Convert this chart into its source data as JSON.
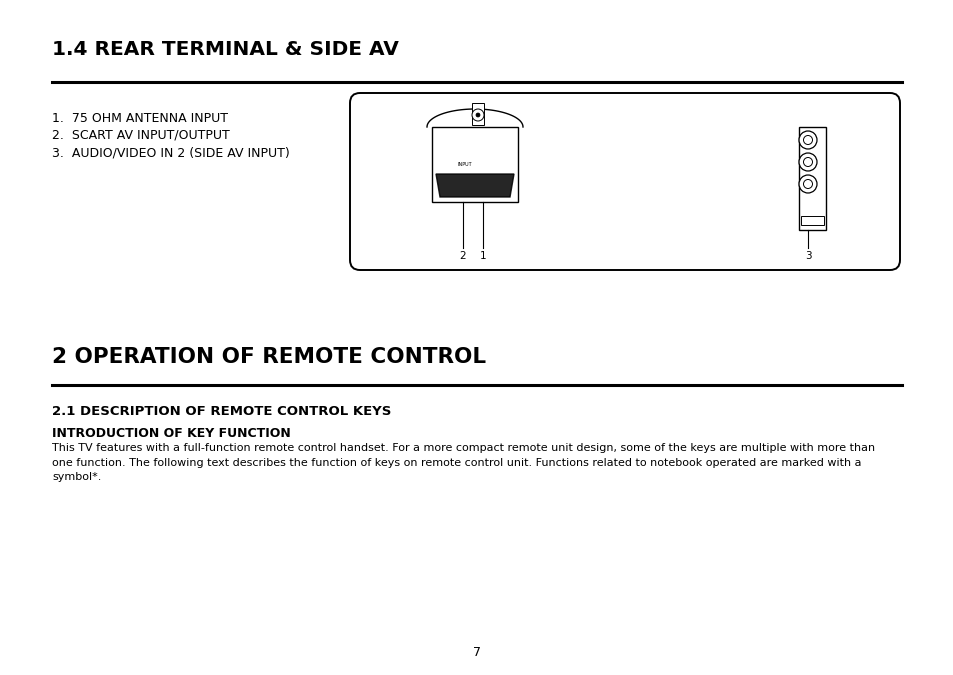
{
  "bg_color": "#ffffff",
  "page_number": "7",
  "section1_title": "1.4 REAR TERMINAL & SIDE AV",
  "list_items": [
    "1.  75 OHM ANTENNA INPUT",
    "2.  SCART AV INPUT/OUTPUT",
    "3.  AUDIO/VIDEO IN 2 (SIDE AV INPUT)"
  ],
  "section2_title": "2 OPERATION OF REMOTE CONTROL",
  "subsection_title": "2.1 DESCRIPTION OF REMOTE CONTROL KEYS",
  "intro_heading": "INTRODUCTION OF KEY FUNCTION",
  "intro_text": "This TV features with a full-function remote control handset. For a more compact remote unit design, some of the keys are multiple with more than one function. The following text describes the function of keys on remote control unit. Functions related to notebook operated are marked with a symbol*."
}
